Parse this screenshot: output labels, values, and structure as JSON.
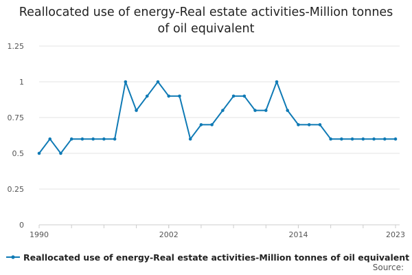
{
  "chart_data": {
    "type": "line",
    "title": "Reallocated use of energy-Real estate activities-Million tonnes of oil equivalent",
    "xlabel": "",
    "ylabel": "",
    "x": [
      1990,
      1991,
      1992,
      1993,
      1994,
      1995,
      1996,
      1997,
      1998,
      1999,
      2000,
      2001,
      2002,
      2003,
      2004,
      2005,
      2006,
      2007,
      2008,
      2009,
      2010,
      2011,
      2012,
      2013,
      2014,
      2015,
      2016,
      2017,
      2018,
      2019,
      2020,
      2021,
      2022,
      2023
    ],
    "x_ticks": [
      "1990",
      "2002",
      "2014",
      "2023"
    ],
    "xlim": [
      1990,
      2023
    ],
    "ylim": [
      0,
      1.25
    ],
    "y_ticks": [
      "0",
      "0.25",
      "0.5",
      "0.75",
      "1",
      "1.25"
    ],
    "grid": true,
    "legend_position": "bottom",
    "series": [
      {
        "name": "Reallocated use of energy-Real estate activities-Million tonnes of oil equivalent",
        "color": "#0f7ab5",
        "values": [
          0.5,
          0.6,
          0.5,
          0.6,
          0.6,
          0.6,
          0.6,
          0.6,
          1.0,
          0.8,
          0.9,
          1.0,
          0.9,
          0.9,
          0.6,
          0.7,
          0.7,
          0.8,
          0.9,
          0.9,
          0.8,
          0.8,
          1.0,
          0.8,
          0.7,
          0.7,
          0.7,
          0.6,
          0.6,
          0.6,
          0.6,
          0.6,
          0.6,
          0.6
        ]
      }
    ]
  },
  "footer": {
    "source_label": "Source:"
  }
}
